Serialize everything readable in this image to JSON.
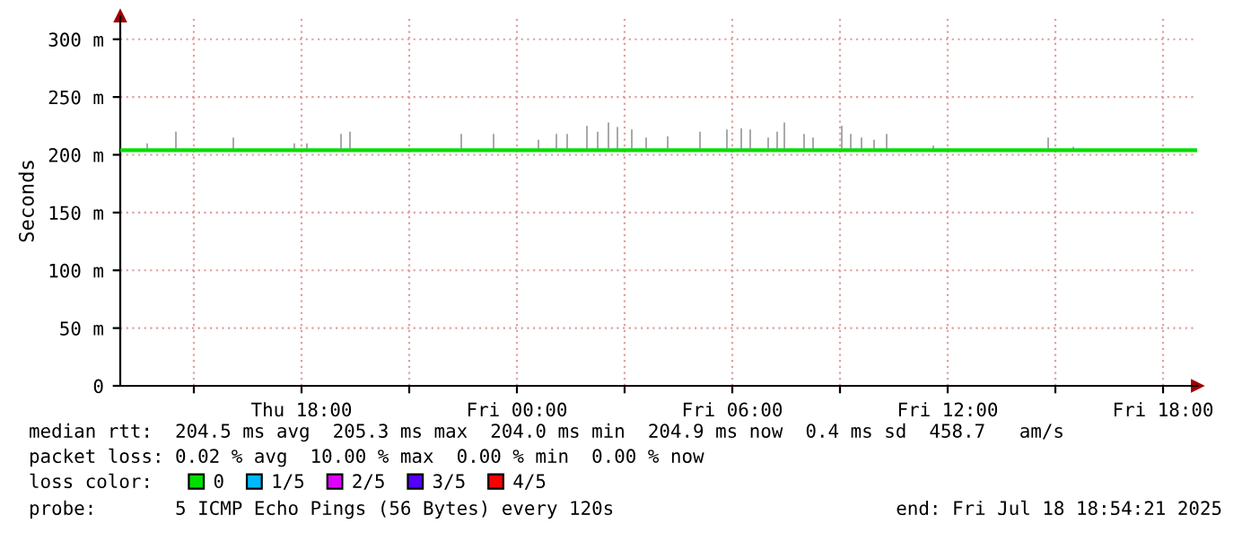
{
  "chart_data": {
    "type": "line",
    "ylabel": "Seconds",
    "x": [
      "2025-07-17T13:00",
      "2025-07-17T15:00",
      "2025-07-17T17:00",
      "2025-07-17T19:00",
      "2025-07-17T21:00",
      "2025-07-17T23:00",
      "2025-07-18T01:00",
      "2025-07-18T03:00",
      "2025-07-18T05:00",
      "2025-07-18T07:00",
      "2025-07-18T09:00",
      "2025-07-18T11:00",
      "2025-07-18T13:00",
      "2025-07-18T15:00",
      "2025-07-18T17:00",
      "2025-07-18T18:54"
    ],
    "series": [
      {
        "type": "bar",
        "color": "#888888",
        "x": [
          "2025-07-17T13:42",
          "2025-07-17T14:30",
          "2025-07-17T16:06",
          "2025-07-17T17:48",
          "2025-07-17T18:09",
          "2025-07-17T19:06",
          "2025-07-17T19:21",
          "2025-07-17T22:27",
          "2025-07-17T23:21",
          "2025-07-18T00:36",
          "2025-07-18T01:06",
          "2025-07-18T01:24",
          "2025-07-18T01:57",
          "2025-07-18T02:15",
          "2025-07-18T02:33",
          "2025-07-18T02:48",
          "2025-07-18T03:12",
          "2025-07-18T03:36",
          "2025-07-18T04:12",
          "2025-07-18T05:06",
          "2025-07-18T05:51",
          "2025-07-18T06:15",
          "2025-07-18T06:30",
          "2025-07-18T07:00",
          "2025-07-18T07:15",
          "2025-07-18T07:27",
          "2025-07-18T08:00",
          "2025-07-18T08:15",
          "2025-07-18T09:03",
          "2025-07-18T09:18",
          "2025-07-18T09:36",
          "2025-07-18T09:57",
          "2025-07-18T10:18",
          "2025-07-18T11:36",
          "2025-07-18T14:48",
          "2025-07-18T15:30"
        ],
        "base": [
          204,
          204,
          204,
          204,
          204,
          204,
          204,
          204,
          204,
          204,
          204,
          204,
          204,
          204,
          204,
          204,
          204,
          204,
          204,
          204,
          204,
          204,
          204,
          204,
          204,
          204,
          204,
          204,
          204,
          204,
          204,
          204,
          204,
          204,
          204,
          204
        ],
        "values": [
          6,
          16,
          11,
          6,
          6,
          14,
          16,
          14,
          14,
          9,
          14,
          14,
          21,
          16,
          24,
          20,
          18,
          11,
          12,
          16,
          18,
          19,
          18,
          11,
          16,
          24,
          14,
          11,
          21,
          14,
          11,
          9,
          14,
          4,
          11,
          3
        ]
      },
      {
        "name": "0",
        "color": "#00e000",
        "values": [
          204,
          204,
          204,
          204,
          204,
          204,
          204,
          204,
          204,
          204,
          204,
          204,
          204,
          204,
          204,
          204
        ]
      },
      {
        "name": "1/5",
        "color": "#00b8ff",
        "values": [
          null,
          null,
          null,
          null,
          null,
          null,
          null,
          null,
          null,
          null,
          null,
          null,
          null,
          null,
          null,
          null
        ]
      },
      {
        "name": "2/5",
        "color": "#dd00ff",
        "values": [
          null,
          null,
          null,
          null,
          null,
          null,
          null,
          null,
          null,
          null,
          null,
          null,
          null,
          null,
          null,
          null
        ]
      },
      {
        "name": "3/5",
        "color": "#5500ff",
        "values": [
          null,
          null,
          null,
          null,
          null,
          null,
          null,
          null,
          null,
          null,
          null,
          null,
          null,
          null,
          null,
          null
        ]
      },
      {
        "name": "4/5",
        "color": "#ff0000",
        "values": [
          null,
          null,
          null,
          null,
          null,
          null,
          null,
          null,
          null,
          null,
          null,
          null,
          null,
          null,
          null,
          null
        ]
      }
    ],
    "legend": "bottom",
    "legend_title": "loss color:",
    "xlim": [
      "2025-07-17T12:57",
      "2025-07-18T18:57"
    ],
    "xticks": [
      {
        "value": "2025-07-17T15:00",
        "label": null
      },
      {
        "value": "2025-07-17T18:00",
        "label": "Thu 18:00"
      },
      {
        "value": "2025-07-17T21:00",
        "label": null
      },
      {
        "value": "2025-07-18T00:00",
        "label": "Fri 00:00"
      },
      {
        "value": "2025-07-18T03:00",
        "label": null
      },
      {
        "value": "2025-07-18T06:00",
        "label": "Fri 06:00"
      },
      {
        "value": "2025-07-18T09:00",
        "label": null
      },
      {
        "value": "2025-07-18T12:00",
        "label": "Fri 12:00"
      },
      {
        "value": "2025-07-18T15:00",
        "label": null
      },
      {
        "value": "2025-07-18T18:00",
        "label": "Fri 18:00"
      }
    ],
    "ylim": [
      0,
      320
    ],
    "yticks": [
      0,
      {
        "value": 50,
        "label": "50 m"
      },
      {
        "value": 100,
        "label": "100 m"
      },
      {
        "value": 150,
        "label": "150 m"
      },
      {
        "value": 200,
        "label": "200 m"
      },
      {
        "value": 250,
        "label": "250 m"
      },
      {
        "value": 300,
        "label": "300 m"
      }
    ],
    "grid": true,
    "annotations": [
      "median rtt:  204.5 ms avg  205.3 ms max  204.0 ms min  204.9 ms now  0.4 ms sd  458.7   am/s",
      "packet loss: 0.02 % avg  10.00 % max  0.00 % min  0.00 % now",
      "probe:       5 ICMP Echo Pings (56 Bytes) every 120s",
      "end: Fri Jul 18 18:54:21 2025"
    ]
  }
}
